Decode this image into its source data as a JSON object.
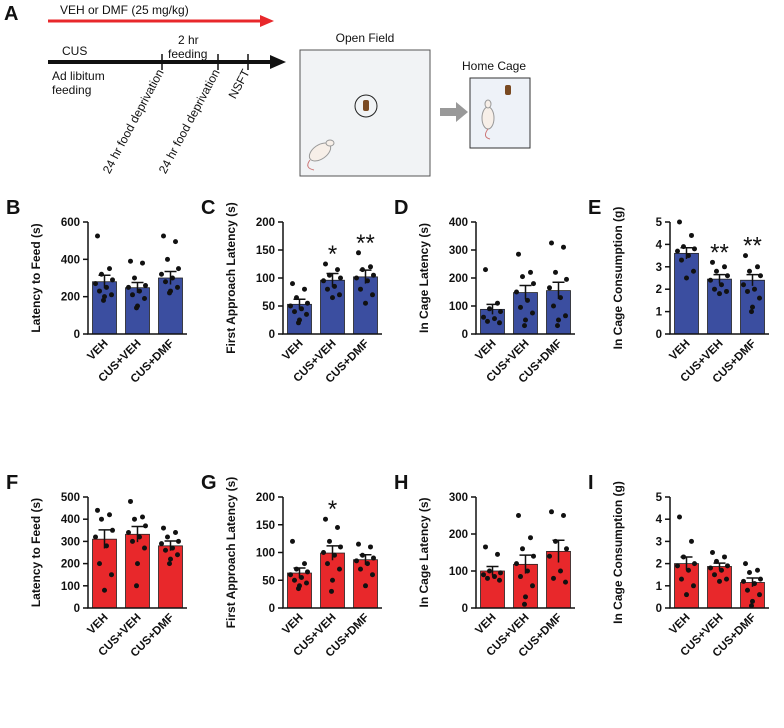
{
  "diagram": {
    "panel": "A",
    "treatment": "VEH or DMF (25 mg/kg)",
    "stress": "CUS",
    "baseline_line1": "Ad libitum",
    "baseline_line2": "feeding",
    "refeed_line1": "2 hr",
    "refeed_line2": "feeding",
    "step1": "24 hr food deprivation",
    "step2": "24 hr food deprivation",
    "step3": "NSFT",
    "arena1": "Open Field",
    "arena2": "Home Cage"
  },
  "chart_data": [
    {
      "type": "bar",
      "panel": "B",
      "ylabel": "Latency to  Feed (s)",
      "categories": [
        "VEH",
        "CUS+VEH",
        "CUS+DMF"
      ],
      "color": "#3b4ea0",
      "values": [
        280,
        248,
        300
      ],
      "errors": [
        35,
        28,
        35
      ],
      "points": [
        [
          525,
          350,
          320,
          290,
          270,
          250,
          230,
          210,
          200,
          180
        ],
        [
          390,
          380,
          300,
          260,
          250,
          230,
          210,
          190,
          150,
          140
        ],
        [
          525,
          495,
          400,
          350,
          320,
          300,
          280,
          250,
          230,
          220
        ]
      ],
      "significance": [
        null,
        null,
        null
      ],
      "ylim": [
        0,
        600
      ],
      "yticks": [
        0,
        200,
        400,
        600
      ]
    },
    {
      "type": "bar",
      "panel": "C",
      "ylabel": "First Approach Latency (s)",
      "categories": [
        "VEH",
        "CUS+VEH",
        "CUS+DMF"
      ],
      "color": "#3b4ea0",
      "values": [
        53,
        96,
        102
      ],
      "errors": [
        9,
        12,
        12
      ],
      "points": [
        [
          90,
          80,
          65,
          55,
          50,
          45,
          40,
          35,
          25,
          20
        ],
        [
          125,
          115,
          105,
          100,
          95,
          85,
          80,
          70,
          65
        ],
        [
          145,
          120,
          115,
          105,
          100,
          95,
          80,
          70,
          55
        ]
      ],
      "significance": [
        null,
        "*",
        "**"
      ],
      "ylim": [
        0,
        200
      ],
      "yticks": [
        0,
        50,
        100,
        150,
        200
      ]
    },
    {
      "type": "bar",
      "panel": "D",
      "ylabel": "In Cage Latency (s)",
      "categories": [
        "VEH",
        "CUS+VEH",
        "CUS+DMF"
      ],
      "color": "#3b4ea0",
      "values": [
        88,
        148,
        155
      ],
      "errors": [
        18,
        25,
        30
      ],
      "points": [
        [
          230,
          110,
          90,
          80,
          60,
          55,
          45,
          40
        ],
        [
          285,
          220,
          205,
          180,
          150,
          120,
          95,
          75,
          50,
          30
        ],
        [
          325,
          310,
          220,
          195,
          165,
          130,
          100,
          65,
          50,
          30
        ]
      ],
      "significance": [
        null,
        null,
        null
      ],
      "ylim": [
        0,
        400
      ],
      "yticks": [
        0,
        100,
        200,
        300,
        400
      ]
    },
    {
      "type": "bar",
      "panel": "E",
      "ylabel": "In Cage Consumption  (g)",
      "categories": [
        "VEH",
        "CUS+VEH",
        "CUS+DMF"
      ],
      "color": "#3b4ea0",
      "values": [
        3.6,
        2.45,
        2.4
      ],
      "errors": [
        0.25,
        0.2,
        0.25
      ],
      "points": [
        [
          5.0,
          4.4,
          3.9,
          3.8,
          3.7,
          3.5,
          3.3,
          2.8,
          2.5
        ],
        [
          3.2,
          3.0,
          2.8,
          2.6,
          2.4,
          2.2,
          2.0,
          1.9,
          1.8
        ],
        [
          3.5,
          3.0,
          2.8,
          2.6,
          2.2,
          2.0,
          1.9,
          1.6,
          1.2,
          1.0
        ]
      ],
      "significance": [
        null,
        "**",
        "**"
      ],
      "ylim": [
        0,
        5
      ],
      "yticks": [
        0,
        1,
        2,
        3,
        4,
        5
      ]
    },
    {
      "type": "bar",
      "panel": "F",
      "ylabel": "Latency to Feed (s)",
      "categories": [
        "VEH",
        "CUS+VEH",
        "CUS+DMF"
      ],
      "color": "#e8282b",
      "values": [
        310,
        332,
        280
      ],
      "errors": [
        42,
        35,
        22
      ],
      "points": [
        [
          440,
          420,
          400,
          350,
          320,
          280,
          200,
          150,
          80
        ],
        [
          480,
          410,
          400,
          370,
          340,
          320,
          300,
          270,
          200,
          100
        ],
        [
          360,
          340,
          320,
          300,
          290,
          270,
          260,
          240,
          220,
          200
        ]
      ],
      "significance": [
        null,
        null,
        null
      ],
      "ylim": [
        0,
        500
      ],
      "yticks": [
        0,
        100,
        200,
        300,
        400,
        500
      ]
    },
    {
      "type": "bar",
      "panel": "G",
      "ylabel": "First Approach Latency (s)",
      "categories": [
        "VEH",
        "CUS+VEH",
        "CUS+DMF"
      ],
      "color": "#e8282b",
      "values": [
        63,
        99,
        87
      ],
      "errors": [
        9,
        13,
        9
      ],
      "points": [
        [
          120,
          80,
          70,
          65,
          60,
          55,
          50,
          45,
          40,
          35
        ],
        [
          160,
          145,
          120,
          110,
          100,
          95,
          80,
          70,
          50,
          30
        ],
        [
          115,
          110,
          95,
          90,
          85,
          80,
          70,
          60,
          40
        ]
      ],
      "significance": [
        null,
        "*",
        null
      ],
      "ylim": [
        0,
        200
      ],
      "yticks": [
        0,
        50,
        100,
        150,
        200
      ]
    },
    {
      "type": "bar",
      "panel": "H",
      "ylabel": "In Cage Latency (s)",
      "categories": [
        "VEH",
        "CUS+VEH",
        "CUS+DMF"
      ],
      "color": "#e8282b",
      "values": [
        100,
        118,
        153
      ],
      "errors": [
        12,
        25,
        30
      ],
      "points": [
        [
          165,
          145,
          100,
          95,
          90,
          85,
          80,
          75
        ],
        [
          250,
          190,
          160,
          140,
          120,
          100,
          85,
          60,
          30,
          10
        ],
        [
          260,
          250,
          180,
          160,
          140,
          100,
          80,
          70
        ]
      ],
      "significance": [
        null,
        null,
        null
      ],
      "ylim": [
        0,
        300
      ],
      "yticks": [
        0,
        100,
        200,
        300
      ]
    },
    {
      "type": "bar",
      "panel": "I",
      "ylabel": "In Cage Consumption  (g)",
      "categories": [
        "VEH",
        "CUS+VEH",
        "CUS+DMF"
      ],
      "color": "#e8282b",
      "values": [
        2.0,
        1.87,
        1.15
      ],
      "errors": [
        0.3,
        0.15,
        0.2
      ],
      "points": [
        [
          4.1,
          3.0,
          2.3,
          2.0,
          1.9,
          1.7,
          1.3,
          1.0,
          0.6
        ],
        [
          2.5,
          2.3,
          2.1,
          1.9,
          1.8,
          1.7,
          1.5,
          1.3,
          1.2
        ],
        [
          2.0,
          1.7,
          1.6,
          1.3,
          1.2,
          1.1,
          0.8,
          0.6,
          0.3,
          0.1
        ]
      ],
      "significance": [
        null,
        null,
        null
      ],
      "ylim": [
        0,
        5
      ],
      "yticks": [
        0,
        1,
        2,
        3,
        4,
        5
      ]
    }
  ]
}
